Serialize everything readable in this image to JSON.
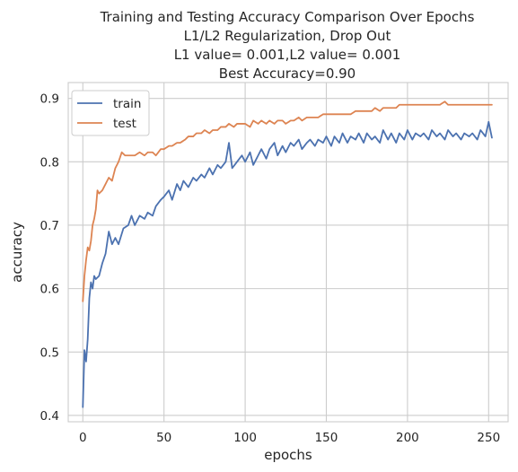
{
  "chart_data": {
    "type": "line",
    "title_lines": [
      "Training and Testing Accuracy Comparison Over Epochs",
      "L1/L2 Regularization, Drop Out",
      "L1 value= 0.001,L2 value= 0.001",
      "Best Accuracy=0.90"
    ],
    "xlabel": "epochs",
    "ylabel": "accuracy",
    "xlim": [
      -9,
      262
    ],
    "ylim": [
      0.39,
      0.925
    ],
    "xticks": [
      0,
      50,
      100,
      150,
      200,
      250
    ],
    "yticks": [
      0.4,
      0.5,
      0.6,
      0.7,
      0.8,
      0.9
    ],
    "xtick_labels": [
      "0",
      "50",
      "100",
      "150",
      "200",
      "250"
    ],
    "ytick_labels": [
      "0.4",
      "0.5",
      "0.6",
      "0.7",
      "0.8",
      "0.9"
    ],
    "grid": true,
    "legend_position": "top-left",
    "background_color": "#ffffff",
    "grid_color": "#cccccc",
    "series": [
      {
        "name": "train",
        "color": "#4c72b0",
        "keypoints": [
          [
            0,
            0.413
          ],
          [
            1,
            0.503
          ],
          [
            2,
            0.485
          ],
          [
            3,
            0.52
          ],
          [
            4,
            0.585
          ],
          [
            5,
            0.61
          ],
          [
            6,
            0.6
          ],
          [
            7,
            0.62
          ],
          [
            8,
            0.615
          ],
          [
            10,
            0.62
          ],
          [
            12,
            0.64
          ],
          [
            14,
            0.655
          ],
          [
            16,
            0.69
          ],
          [
            18,
            0.67
          ],
          [
            20,
            0.68
          ],
          [
            22,
            0.67
          ],
          [
            25,
            0.695
          ],
          [
            28,
            0.7
          ],
          [
            30,
            0.715
          ],
          [
            32,
            0.7
          ],
          [
            35,
            0.715
          ],
          [
            38,
            0.71
          ],
          [
            40,
            0.72
          ],
          [
            43,
            0.715
          ],
          [
            45,
            0.73
          ],
          [
            48,
            0.74
          ],
          [
            50,
            0.745
          ],
          [
            53,
            0.755
          ],
          [
            55,
            0.74
          ],
          [
            58,
            0.765
          ],
          [
            60,
            0.755
          ],
          [
            62,
            0.77
          ],
          [
            65,
            0.76
          ],
          [
            68,
            0.775
          ],
          [
            70,
            0.77
          ],
          [
            73,
            0.78
          ],
          [
            75,
            0.775
          ],
          [
            78,
            0.79
          ],
          [
            80,
            0.78
          ],
          [
            83,
            0.795
          ],
          [
            85,
            0.79
          ],
          [
            88,
            0.8
          ],
          [
            90,
            0.83
          ],
          [
            92,
            0.79
          ],
          [
            95,
            0.8
          ],
          [
            98,
            0.81
          ],
          [
            100,
            0.8
          ],
          [
            103,
            0.815
          ],
          [
            105,
            0.795
          ],
          [
            108,
            0.81
          ],
          [
            110,
            0.82
          ],
          [
            113,
            0.805
          ],
          [
            115,
            0.82
          ],
          [
            118,
            0.83
          ],
          [
            120,
            0.81
          ],
          [
            123,
            0.825
          ],
          [
            125,
            0.815
          ],
          [
            128,
            0.83
          ],
          [
            130,
            0.825
          ],
          [
            133,
            0.835
          ],
          [
            135,
            0.82
          ],
          [
            138,
            0.83
          ],
          [
            140,
            0.835
          ],
          [
            143,
            0.825
          ],
          [
            145,
            0.835
          ],
          [
            148,
            0.83
          ],
          [
            150,
            0.84
          ],
          [
            153,
            0.825
          ],
          [
            155,
            0.84
          ],
          [
            158,
            0.83
          ],
          [
            160,
            0.845
          ],
          [
            163,
            0.83
          ],
          [
            165,
            0.84
          ],
          [
            168,
            0.835
          ],
          [
            170,
            0.845
          ],
          [
            173,
            0.83
          ],
          [
            175,
            0.845
          ],
          [
            178,
            0.835
          ],
          [
            180,
            0.84
          ],
          [
            183,
            0.83
          ],
          [
            185,
            0.85
          ],
          [
            188,
            0.835
          ],
          [
            190,
            0.845
          ],
          [
            193,
            0.83
          ],
          [
            195,
            0.845
          ],
          [
            198,
            0.835
          ],
          [
            200,
            0.85
          ],
          [
            203,
            0.835
          ],
          [
            205,
            0.845
          ],
          [
            208,
            0.84
          ],
          [
            210,
            0.845
          ],
          [
            213,
            0.835
          ],
          [
            215,
            0.85
          ],
          [
            218,
            0.84
          ],
          [
            220,
            0.845
          ],
          [
            223,
            0.835
          ],
          [
            225,
            0.85
          ],
          [
            228,
            0.84
          ],
          [
            230,
            0.845
          ],
          [
            233,
            0.835
          ],
          [
            235,
            0.845
          ],
          [
            238,
            0.84
          ],
          [
            240,
            0.845
          ],
          [
            243,
            0.835
          ],
          [
            245,
            0.85
          ],
          [
            248,
            0.84
          ],
          [
            250,
            0.863
          ],
          [
            252,
            0.838
          ]
        ]
      },
      {
        "name": "test",
        "color": "#dd8452",
        "keypoints": [
          [
            0,
            0.58
          ],
          [
            1,
            0.62
          ],
          [
            2,
            0.645
          ],
          [
            3,
            0.665
          ],
          [
            4,
            0.66
          ],
          [
            5,
            0.675
          ],
          [
            6,
            0.7
          ],
          [
            7,
            0.71
          ],
          [
            8,
            0.725
          ],
          [
            9,
            0.755
          ],
          [
            10,
            0.75
          ],
          [
            12,
            0.755
          ],
          [
            14,
            0.765
          ],
          [
            16,
            0.775
          ],
          [
            18,
            0.77
          ],
          [
            20,
            0.79
          ],
          [
            22,
            0.8
          ],
          [
            24,
            0.815
          ],
          [
            26,
            0.81
          ],
          [
            28,
            0.81
          ],
          [
            32,
            0.81
          ],
          [
            35,
            0.815
          ],
          [
            38,
            0.81
          ],
          [
            40,
            0.815
          ],
          [
            43,
            0.815
          ],
          [
            45,
            0.81
          ],
          [
            48,
            0.82
          ],
          [
            50,
            0.82
          ],
          [
            53,
            0.825
          ],
          [
            55,
            0.825
          ],
          [
            58,
            0.83
          ],
          [
            60,
            0.83
          ],
          [
            63,
            0.835
          ],
          [
            65,
            0.84
          ],
          [
            68,
            0.84
          ],
          [
            70,
            0.845
          ],
          [
            73,
            0.845
          ],
          [
            75,
            0.85
          ],
          [
            78,
            0.845
          ],
          [
            80,
            0.85
          ],
          [
            83,
            0.85
          ],
          [
            85,
            0.855
          ],
          [
            88,
            0.855
          ],
          [
            90,
            0.86
          ],
          [
            93,
            0.855
          ],
          [
            95,
            0.86
          ],
          [
            98,
            0.86
          ],
          [
            100,
            0.86
          ],
          [
            103,
            0.855
          ],
          [
            105,
            0.865
          ],
          [
            108,
            0.86
          ],
          [
            110,
            0.865
          ],
          [
            113,
            0.86
          ],
          [
            115,
            0.865
          ],
          [
            118,
            0.86
          ],
          [
            120,
            0.865
          ],
          [
            123,
            0.865
          ],
          [
            125,
            0.86
          ],
          [
            128,
            0.865
          ],
          [
            130,
            0.865
          ],
          [
            133,
            0.87
          ],
          [
            135,
            0.865
          ],
          [
            138,
            0.87
          ],
          [
            140,
            0.87
          ],
          [
            143,
            0.87
          ],
          [
            145,
            0.87
          ],
          [
            148,
            0.875
          ],
          [
            150,
            0.875
          ],
          [
            153,
            0.875
          ],
          [
            155,
            0.875
          ],
          [
            158,
            0.875
          ],
          [
            160,
            0.875
          ],
          [
            163,
            0.875
          ],
          [
            165,
            0.875
          ],
          [
            168,
            0.88
          ],
          [
            170,
            0.88
          ],
          [
            173,
            0.88
          ],
          [
            175,
            0.88
          ],
          [
            178,
            0.88
          ],
          [
            180,
            0.885
          ],
          [
            183,
            0.88
          ],
          [
            185,
            0.885
          ],
          [
            188,
            0.885
          ],
          [
            190,
            0.885
          ],
          [
            193,
            0.885
          ],
          [
            195,
            0.89
          ],
          [
            198,
            0.89
          ],
          [
            200,
            0.89
          ],
          [
            203,
            0.89
          ],
          [
            205,
            0.89
          ],
          [
            208,
            0.89
          ],
          [
            210,
            0.89
          ],
          [
            213,
            0.89
          ],
          [
            215,
            0.89
          ],
          [
            218,
            0.89
          ],
          [
            220,
            0.89
          ],
          [
            223,
            0.895
          ],
          [
            225,
            0.89
          ],
          [
            228,
            0.89
          ],
          [
            230,
            0.89
          ],
          [
            233,
            0.89
          ],
          [
            235,
            0.89
          ],
          [
            238,
            0.89
          ],
          [
            240,
            0.89
          ],
          [
            243,
            0.89
          ],
          [
            245,
            0.89
          ],
          [
            248,
            0.89
          ],
          [
            250,
            0.89
          ],
          [
            252,
            0.89
          ]
        ]
      }
    ]
  }
}
